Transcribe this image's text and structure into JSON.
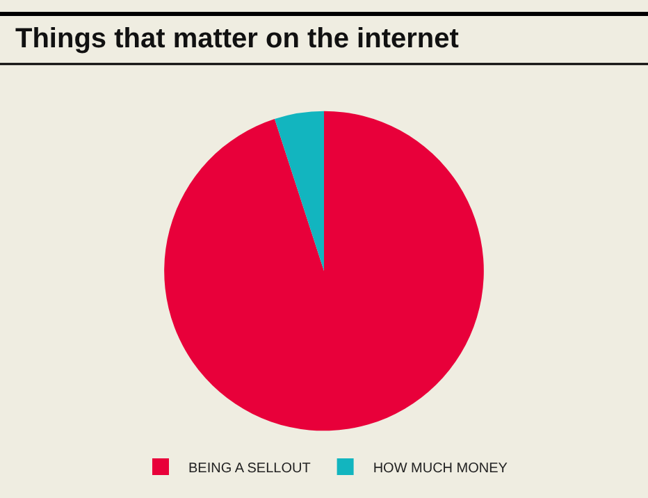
{
  "chart_data": {
    "type": "pie",
    "title": "Things that matter on the internet",
    "categories": [
      "BEING A SELLOUT",
      "HOW MUCH MONEY"
    ],
    "values": [
      95,
      5
    ],
    "colors": [
      "#e8003a",
      "#12b5bf"
    ],
    "legend": "bottom"
  }
}
